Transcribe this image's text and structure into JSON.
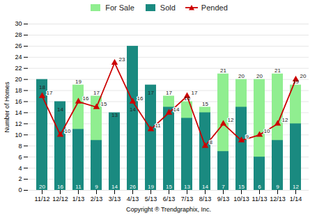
{
  "chart_data": {
    "type": "bar",
    "categories": [
      "11/12",
      "12/12",
      "1/13",
      "2/13",
      "3/13",
      "4/13",
      "5/13",
      "6/13",
      "7/13",
      "8/13",
      "9/13",
      "10/13",
      "11/13",
      "12/13",
      "1/14"
    ],
    "series": [
      {
        "name": "For Sale",
        "type": "bar",
        "color": "#90EE90",
        "values": [
          18,
          14,
          19,
          17,
          13,
          14,
          17,
          17,
          16,
          15,
          21,
          20,
          20,
          21,
          19
        ]
      },
      {
        "name": "Sold",
        "type": "bar",
        "color": "#1A8A80",
        "values": [
          20,
          16,
          11,
          9,
          14,
          26,
          19,
          15,
          13,
          14,
          7,
          15,
          6,
          9,
          12
        ]
      },
      {
        "name": "Pended",
        "type": "line",
        "color": "#CC0000",
        "marker": "triangle",
        "values": [
          17,
          10,
          16,
          15,
          23,
          16,
          11,
          14,
          17,
          8,
          12,
          9,
          10,
          12,
          20
        ]
      }
    ],
    "xlabel": "Copyright ® Trendgraphix, Inc.",
    "ylabel": "Number of Homes",
    "ylim": [
      0,
      30
    ],
    "yticks": [
      0,
      2,
      4,
      6,
      8,
      10,
      12,
      14,
      16,
      18,
      20,
      22,
      24,
      26,
      28,
      30
    ],
    "grid": true,
    "legend": "top",
    "data_labels": true
  }
}
